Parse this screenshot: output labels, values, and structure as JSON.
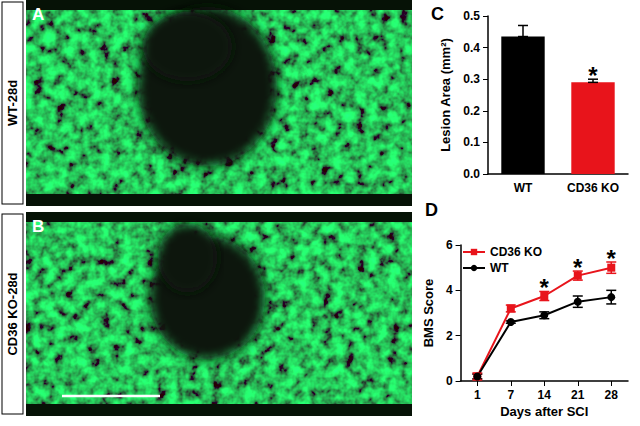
{
  "images": [
    {
      "letter": "A",
      "label": "WT-28d"
    },
    {
      "letter": "B",
      "label": "CD36 KO-28d"
    }
  ],
  "chart_data": [
    {
      "type": "bar",
      "title": "C",
      "categories": [
        "WT",
        "CD36 KO"
      ],
      "values": [
        0.435,
        0.29
      ],
      "errors": [
        0.035,
        0.01
      ],
      "colors": [
        "#000000",
        "#e8141b"
      ],
      "ylabel": "Lesion Area (mm²)",
      "ylim": [
        0,
        0.5
      ],
      "yticks": [
        {
          "value": 0,
          "label": "0.0"
        },
        0.1,
        0.2,
        0.3,
        0.4,
        0.5
      ],
      "annotations": [
        {
          "text": "*",
          "category": "CD36 KO"
        }
      ]
    },
    {
      "type": "line",
      "title": "D",
      "categories": [
        "1",
        "7",
        "14",
        "21",
        "28"
      ],
      "xlabel": "Days after SCI",
      "ylabel": "BMS Score",
      "ylim": [
        0,
        6
      ],
      "yticks": [
        0,
        2,
        4,
        6
      ],
      "legend": "upper left",
      "series": [
        {
          "name": "CD36 KO",
          "color": "#e8141b",
          "marker": "square",
          "values": [
            0.2,
            3.2,
            3.75,
            4.65,
            5.0
          ],
          "errors": [
            0.15,
            0.15,
            0.2,
            0.2,
            0.25
          ]
        },
        {
          "name": "WT",
          "color": "#000000",
          "marker": "circle",
          "values": [
            0.2,
            2.6,
            2.9,
            3.5,
            3.7
          ],
          "errors": [
            0.1,
            0.05,
            0.15,
            0.25,
            0.3
          ]
        }
      ],
      "annotations": [
        {
          "text": "*",
          "category": "14"
        },
        {
          "text": "*",
          "category": "21"
        },
        {
          "text": "*",
          "category": "28"
        }
      ]
    }
  ]
}
